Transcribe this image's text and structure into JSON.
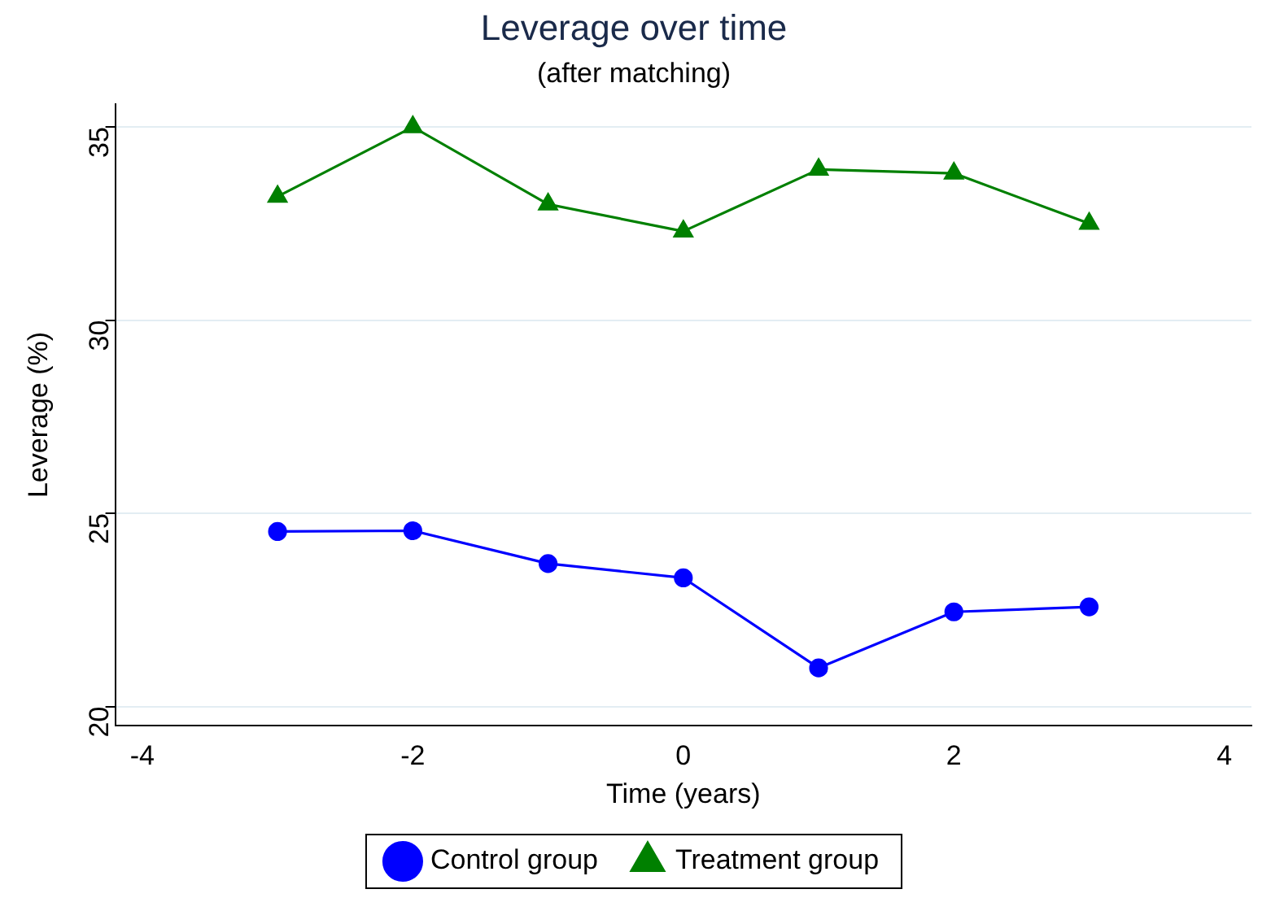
{
  "chart_data": {
    "type": "line",
    "title": "Leverage over time",
    "subtitle": "(after matching)",
    "xlabel": "Time (years)",
    "ylabel": "Leverage (%)",
    "x": [
      -3,
      -2,
      -1,
      0,
      1,
      2,
      3
    ],
    "series": [
      {
        "name": "Control group",
        "color": "#0000ff",
        "marker": "circle",
        "values": [
          24.53,
          24.55,
          23.7,
          23.33,
          21.0,
          22.45,
          22.58
        ]
      },
      {
        "name": "Treatment group",
        "color": "#008000",
        "marker": "triangle",
        "values": [
          33.2,
          35.0,
          33.0,
          32.3,
          33.9,
          33.8,
          32.5
        ]
      }
    ],
    "xlim": [
      -4.2,
      4.2
    ],
    "xticks": [
      -4,
      -2,
      0,
      2,
      4
    ],
    "ylim": [
      19.5,
      35.6
    ],
    "yticks": [
      20,
      25,
      30,
      35
    ],
    "grid": "y",
    "legend": "bottom",
    "line_style": "solid"
  }
}
